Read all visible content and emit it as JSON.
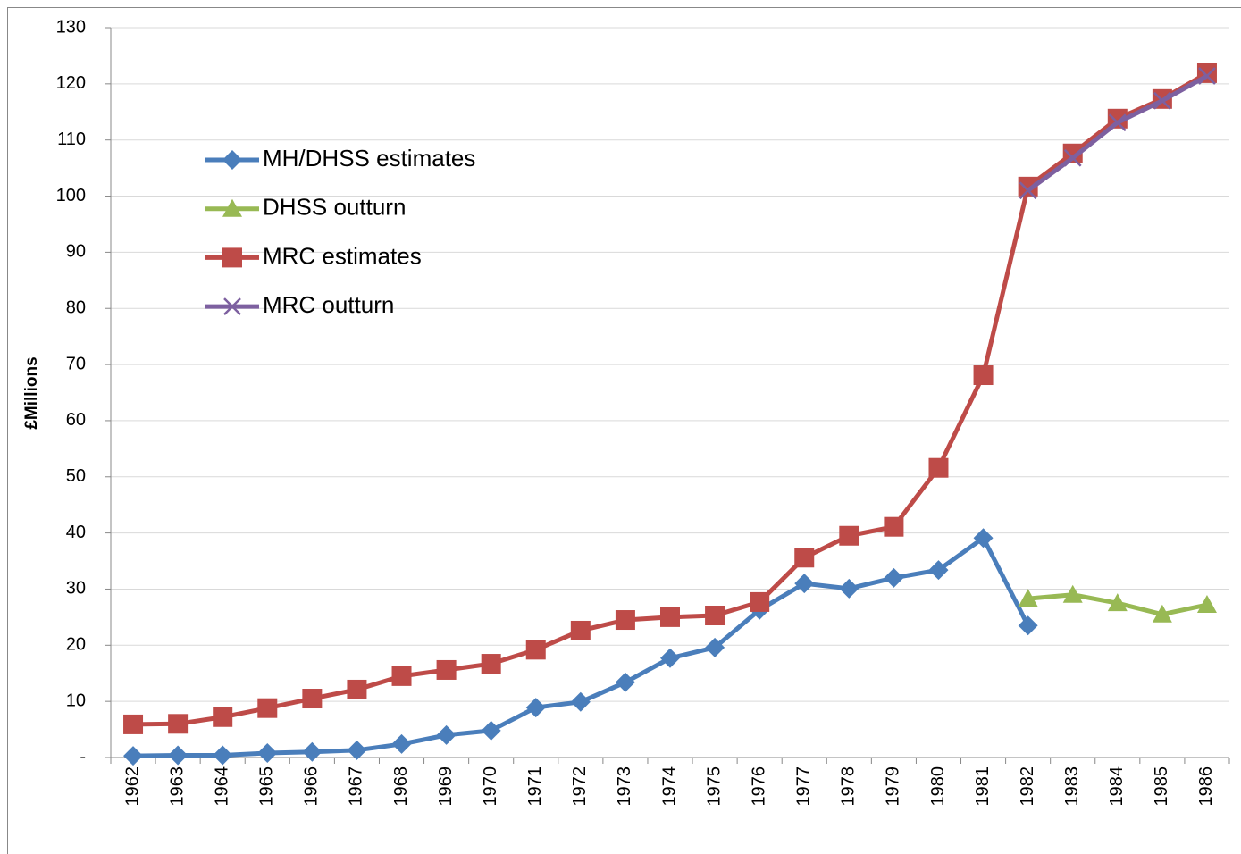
{
  "chart_data": {
    "type": "line",
    "y_label": "£Millions",
    "categories": [
      "1962",
      "1963",
      "1964",
      "1965",
      "1966",
      "1967",
      "1968",
      "1969",
      "1970",
      "1971",
      "1972",
      "1973",
      "1974",
      "1975",
      "1976",
      "1977",
      "1978",
      "1979",
      "1980",
      "1981",
      "1982",
      "1983",
      "1984",
      "1985",
      "1986"
    ],
    "series": [
      {
        "name": "MH/DHSS estimates",
        "color": "#4a7ebb",
        "marker": "diamond",
        "values": [
          0.3,
          0.4,
          0.4,
          0.8,
          1.0,
          1.3,
          2.4,
          4.0,
          4.8,
          8.9,
          9.9,
          13.4,
          17.7,
          19.6,
          26.3,
          31.0,
          30.1,
          32.0,
          33.4,
          39.1,
          23.5,
          null,
          null,
          null,
          null
        ]
      },
      {
        "name": "DHSS outturn",
        "color": "#98b954",
        "marker": "triangle",
        "values": [
          null,
          null,
          null,
          null,
          null,
          null,
          null,
          null,
          null,
          null,
          null,
          null,
          null,
          null,
          null,
          null,
          null,
          null,
          null,
          null,
          28.3,
          29.0,
          27.5,
          25.5,
          27.2
        ]
      },
      {
        "name": "MRC estimates",
        "color": "#be4b48",
        "marker": "square",
        "values": [
          5.9,
          6.0,
          7.2,
          8.8,
          10.5,
          12.1,
          14.5,
          15.6,
          16.7,
          19.2,
          22.6,
          24.5,
          25.0,
          25.3,
          27.7,
          35.6,
          39.5,
          41.1,
          51.6,
          68.1,
          101.7,
          107.6,
          113.8,
          117.3,
          121.9
        ]
      },
      {
        "name": "MRC outturn",
        "color": "#7d60a0",
        "marker": "x",
        "values": [
          null,
          null,
          null,
          null,
          null,
          null,
          null,
          null,
          null,
          null,
          null,
          null,
          null,
          null,
          null,
          null,
          null,
          null,
          null,
          null,
          101.0,
          106.8,
          113.1,
          117.0,
          121.4
        ]
      }
    ],
    "ylim": [
      0,
      130
    ],
    "yticks": [
      {
        "value": 0,
        "label": "-"
      },
      10,
      20,
      30,
      40,
      50,
      60,
      70,
      80,
      90,
      100,
      110,
      120,
      130
    ],
    "grid": true
  }
}
